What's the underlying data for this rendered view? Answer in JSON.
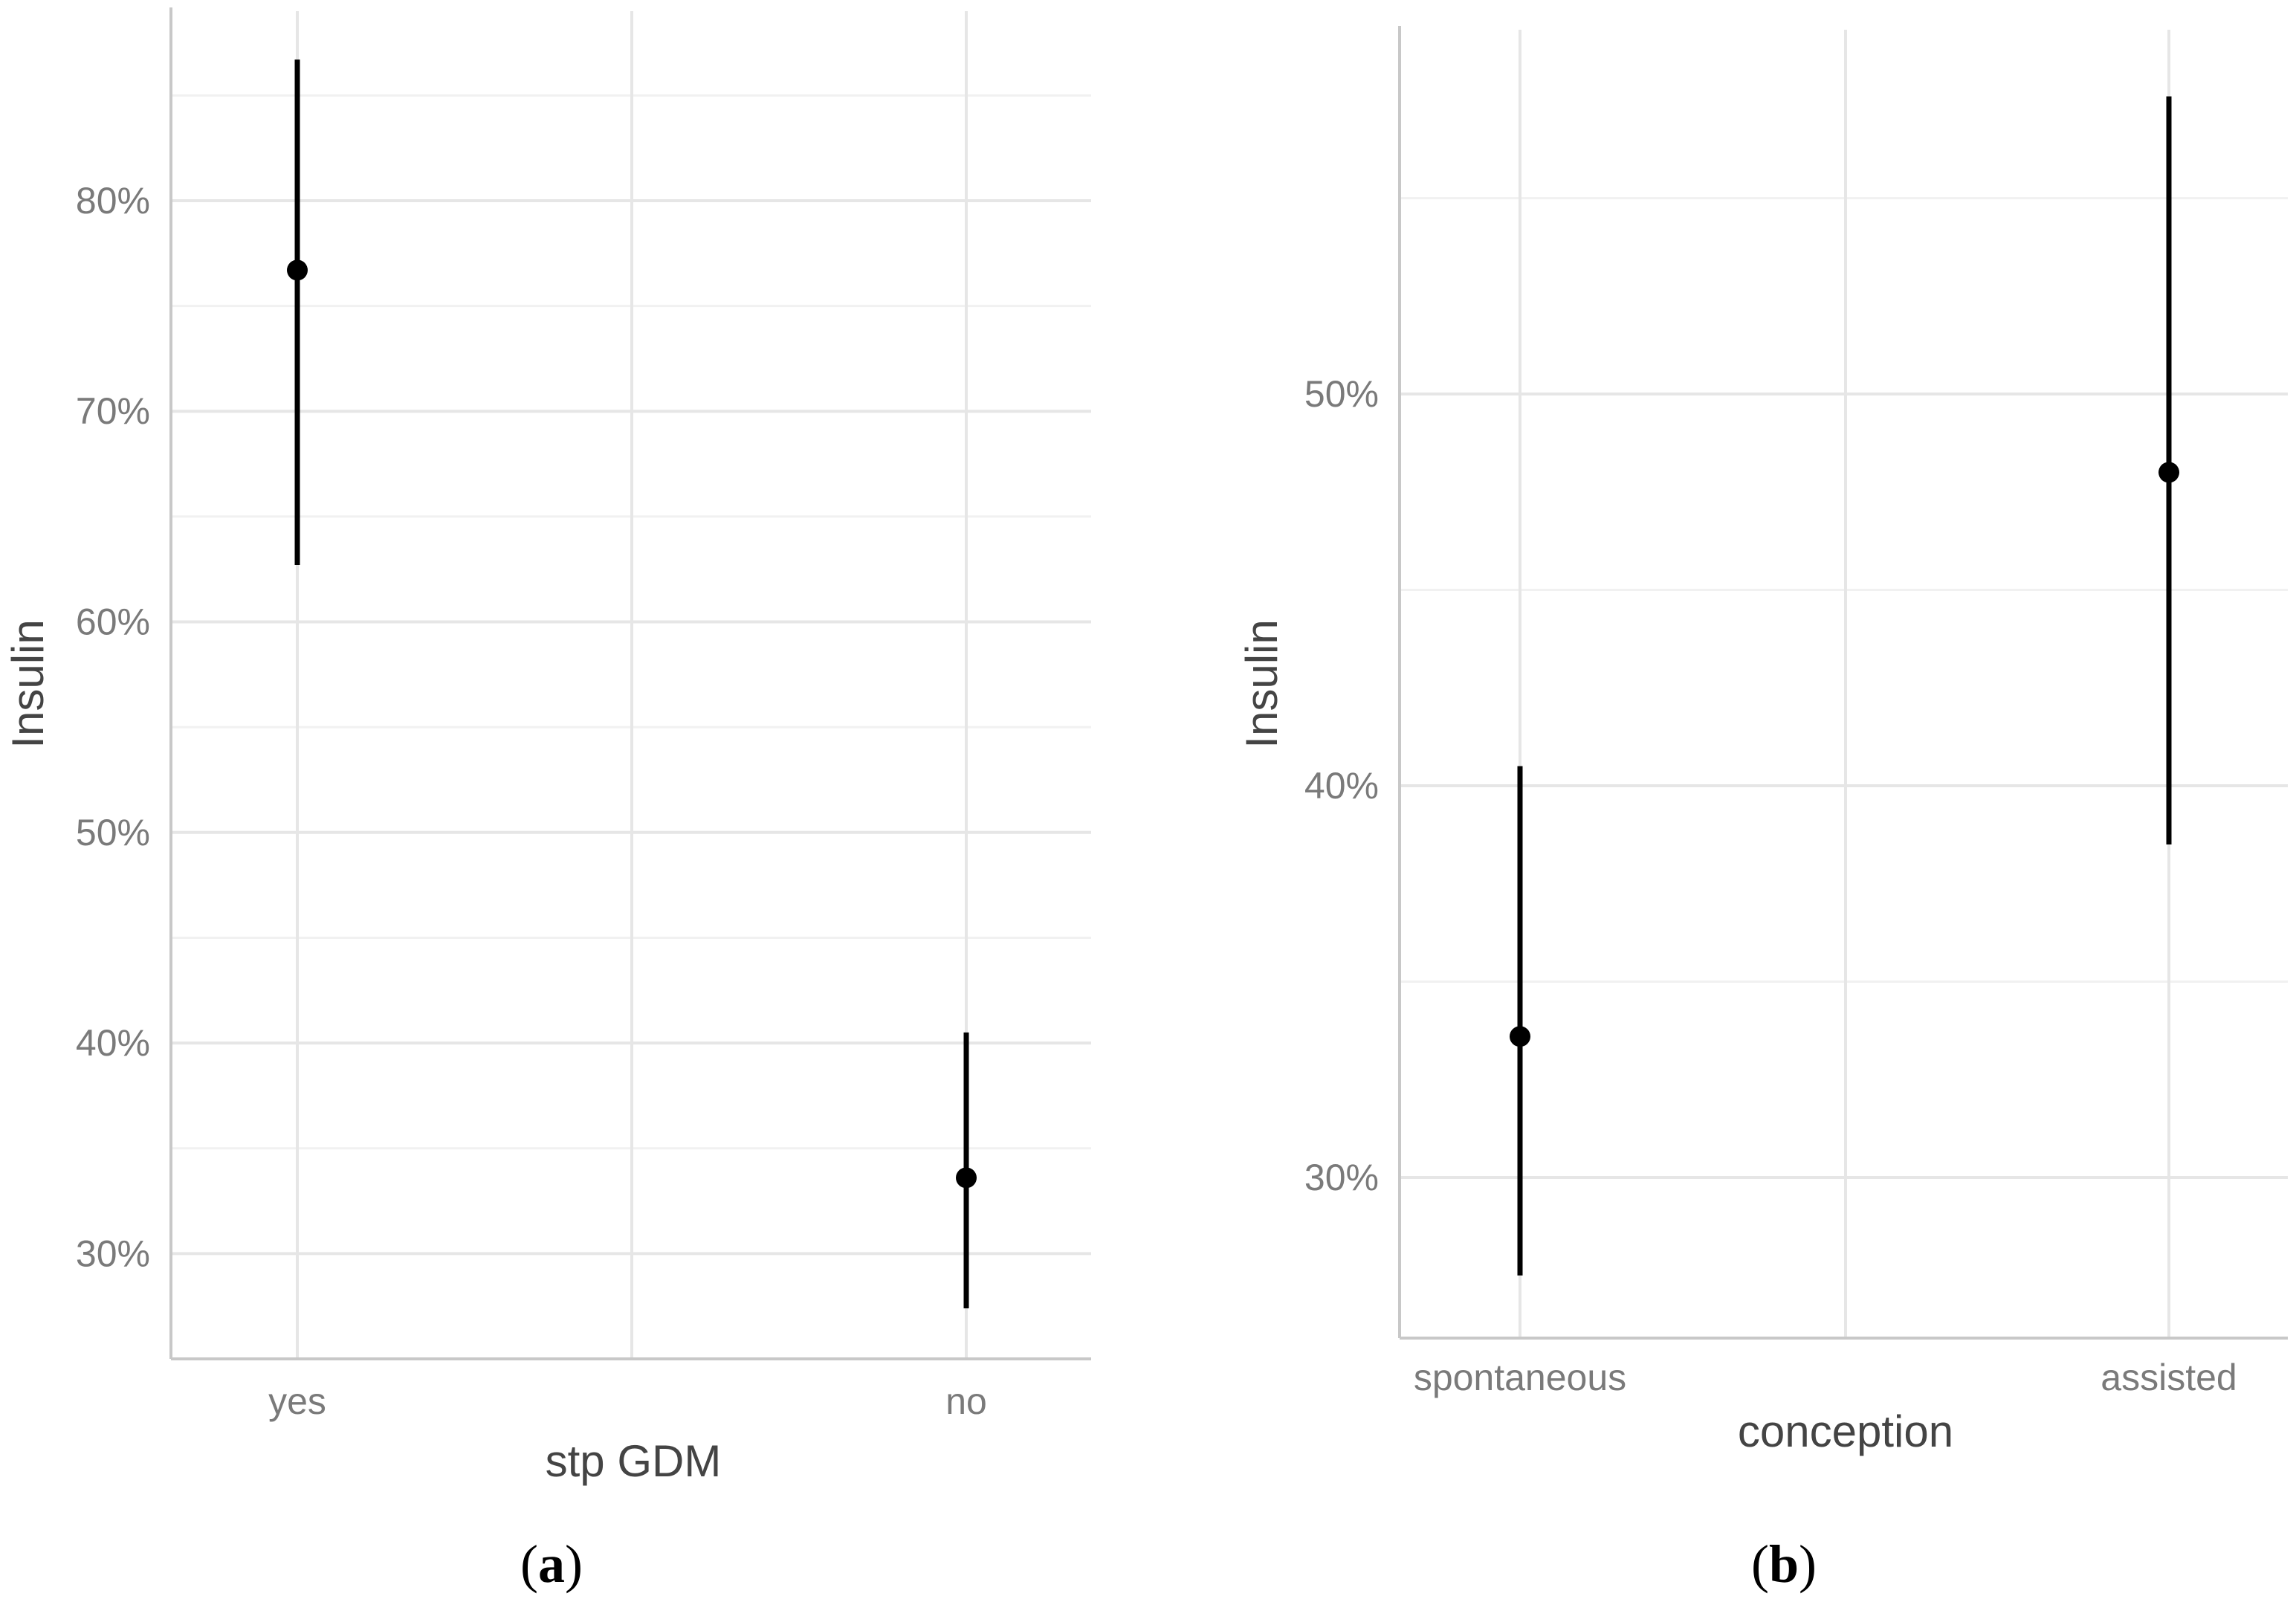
{
  "chart_data": [
    {
      "type": "scatter",
      "panel_label": "a",
      "xlabel": "stp GDM",
      "ylabel": "Insulin",
      "categories": [
        "yes",
        "no"
      ],
      "ylim": [
        0.25,
        0.89
      ],
      "yticks": [
        0.3,
        0.4,
        0.5,
        0.6,
        0.7,
        0.8
      ],
      "ytick_labels": [
        "30%",
        "40%",
        "50%",
        "60%",
        "70%",
        "80%"
      ],
      "series": [
        {
          "points": [
            {
              "x": "yes",
              "y": 0.767,
              "lower": 0.627,
              "upper": 0.867
            },
            {
              "x": "no",
              "y": 0.336,
              "lower": 0.274,
              "upper": 0.405
            }
          ]
        }
      ],
      "grid": true,
      "legend": "none"
    },
    {
      "type": "scatter",
      "panel_label": "b",
      "xlabel": "conception",
      "ylabel": "Insulin",
      "categories": [
        "spontaneous",
        "assisted"
      ],
      "ylim": [
        0.259,
        0.593
      ],
      "yticks": [
        0.3,
        0.4,
        0.5
      ],
      "ytick_labels": [
        "30%",
        "40%",
        "50%"
      ],
      "series": [
        {
          "points": [
            {
              "x": "spontaneous",
              "y": 0.336,
              "lower": 0.275,
              "upper": 0.405
            },
            {
              "x": "assisted",
              "y": 0.48,
              "lower": 0.385,
              "upper": 0.576
            }
          ]
        }
      ],
      "grid": true,
      "legend": "none"
    }
  ]
}
